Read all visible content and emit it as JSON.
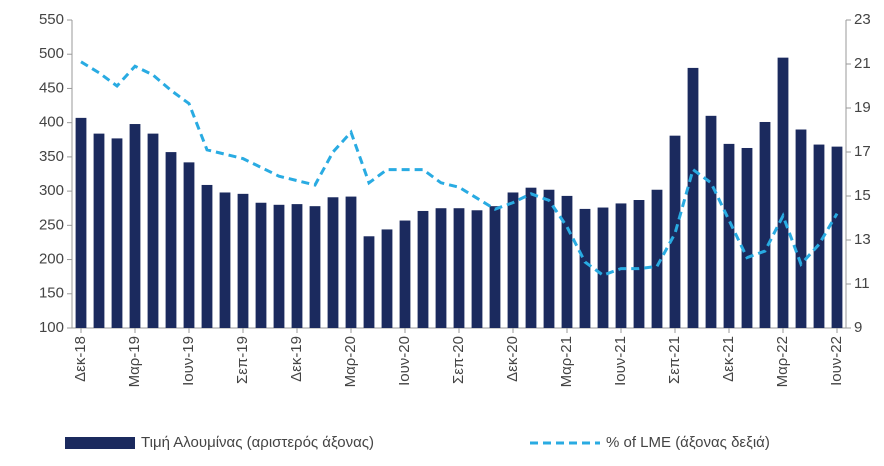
{
  "chart_data": {
    "type": "combo",
    "categories": [
      "Δεκ-18",
      null,
      null,
      "Μαρ-19",
      null,
      null,
      "Ιουν-19",
      null,
      null,
      "Σεπ-19",
      null,
      null,
      "Δεκ-19",
      null,
      null,
      "Μαρ-20",
      null,
      null,
      "Ιουν-20",
      null,
      null,
      "Σεπ-20",
      null,
      null,
      "Δεκ-20",
      null,
      null,
      "Μαρ-21",
      null,
      null,
      "Ιουν-21",
      null,
      null,
      "Σεπ-21",
      null,
      null,
      "Δεκ-21",
      null,
      null,
      "Μαρ-22",
      null,
      null,
      "Ιουν-22"
    ],
    "series": [
      {
        "name": "Τιμή Αλουμίνας (αριστερός άξονας)",
        "type": "bar",
        "color": "#1b2a5e",
        "values": [
          407,
          384,
          377,
          398,
          384,
          357,
          342,
          309,
          298,
          296,
          283,
          280,
          281,
          278,
          291,
          292,
          234,
          244,
          257,
          271,
          275,
          275,
          272,
          278,
          298,
          305,
          302,
          293,
          274,
          276,
          282,
          287,
          302,
          381,
          480,
          410,
          369,
          363,
          401,
          495,
          390,
          368,
          365
        ]
      },
      {
        "name": "% of LME (άξονας δεξιά)",
        "type": "line",
        "axis": "y2",
        "color": "#29abe2",
        "values": [
          21.1,
          20.6,
          20.0,
          20.9,
          20.5,
          19.8,
          19.2,
          17.1,
          16.9,
          16.7,
          16.3,
          15.9,
          15.7,
          15.5,
          17.0,
          17.9,
          15.6,
          16.2,
          16.2,
          16.2,
          15.6,
          15.4,
          14.9,
          14.4,
          14.7,
          15.1,
          14.8,
          13.6,
          12.0,
          11.4,
          11.7,
          11.7,
          11.8,
          13.3,
          16.2,
          15.6,
          13.9,
          12.2,
          12.5,
          14.1,
          11.9,
          12.8,
          14.2
        ]
      }
    ],
    "ylim": [
      100,
      550
    ],
    "yticks": [
      100,
      150,
      200,
      250,
      300,
      350,
      400,
      450,
      500,
      550
    ],
    "y2lim": [
      9,
      23
    ],
    "y2ticks": [
      9,
      11,
      13,
      15,
      17,
      19,
      21,
      23
    ],
    "legend": "bottom"
  }
}
